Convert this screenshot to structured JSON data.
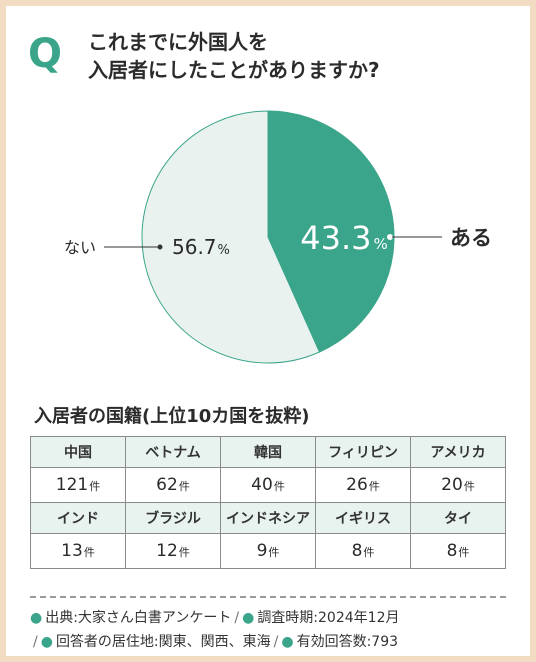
{
  "question": {
    "mark": "Q",
    "line1": "これまでに外国人を",
    "line2": "入居者にしたことがありますか?"
  },
  "chart_data": {
    "type": "pie",
    "slices": [
      {
        "label": "ある",
        "value": 43.3,
        "value_label": "43.3",
        "unit": "%",
        "color": "#3aa58a"
      },
      {
        "label": "ない",
        "value": 56.7,
        "value_label": "56.7",
        "unit": "%",
        "color": "#e9f2ef"
      }
    ]
  },
  "table": {
    "title": "入居者の国籍(上位10カ国を抜粋)",
    "unit": "件",
    "rows": [
      [
        {
          "country": "中国",
          "count": "121"
        },
        {
          "country": "ベトナム",
          "count": "62"
        },
        {
          "country": "韓国",
          "count": "40"
        },
        {
          "country": "フィリピン",
          "count": "26"
        },
        {
          "country": "アメリカ",
          "count": "20"
        }
      ],
      [
        {
          "country": "インド",
          "count": "13"
        },
        {
          "country": "ブラジル",
          "count": "12"
        },
        {
          "country": "インドネシア",
          "count": "9"
        },
        {
          "country": "イギリス",
          "count": "8"
        },
        {
          "country": "タイ",
          "count": "8"
        }
      ]
    ]
  },
  "footer": {
    "source": "出典:大家さん白書アンケート",
    "period": "調査時期:2024年12月",
    "residence": "回答者の居住地:関東、関西、東海",
    "valid": "有効回答数:793",
    "separator": "/"
  },
  "colors": {
    "accent": "#3aa58a",
    "light": "#e9f2ef",
    "frame": "#f3dcc4"
  }
}
